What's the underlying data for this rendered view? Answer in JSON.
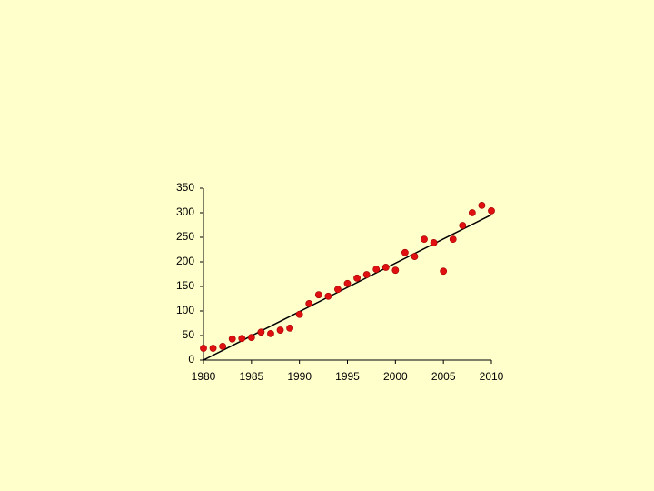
{
  "chart_data": {
    "type": "scatter",
    "x": [
      1980,
      1981,
      1982,
      1983,
      1984,
      1985,
      1986,
      1987,
      1988,
      1989,
      1990,
      1991,
      1992,
      1993,
      1994,
      1995,
      1996,
      1997,
      1998,
      1999,
      2000,
      2001,
      2002,
      2003,
      2004,
      2005,
      2006,
      2007,
      2008,
      2009,
      2010
    ],
    "values": [
      24,
      24,
      28,
      43,
      44,
      46,
      57,
      54,
      61,
      65,
      93,
      115,
      133,
      130,
      144,
      156,
      167,
      174,
      185,
      189,
      183,
      219,
      211,
      246,
      239,
      181,
      246,
      274,
      300,
      315,
      304
    ],
    "color": "#e01010",
    "trendline": {
      "x": [
        1980,
        2010
      ],
      "values": [
        0,
        296
      ],
      "color": "#000000"
    },
    "xlim": [
      1980,
      2010
    ],
    "xticks": [
      1980,
      1985,
      1990,
      1995,
      2000,
      2005,
      2010
    ],
    "ylim": [
      0,
      350
    ],
    "yticks": [
      0,
      50,
      100,
      150,
      200,
      250,
      300,
      350
    ],
    "grid": false
  }
}
